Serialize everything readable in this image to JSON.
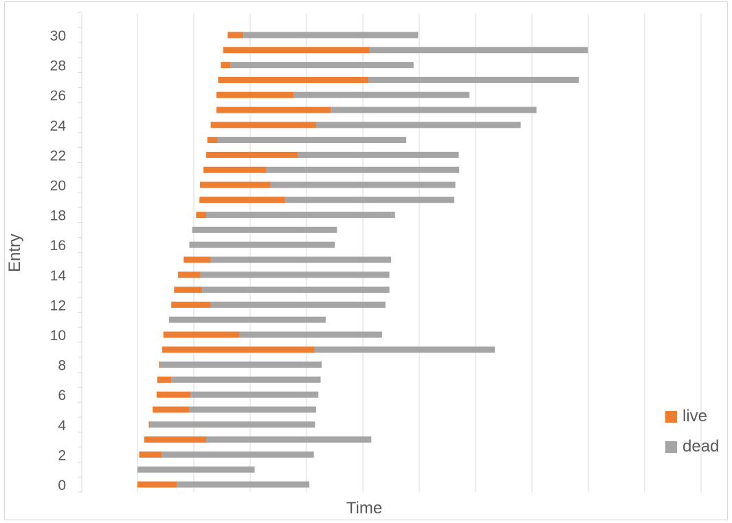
{
  "chart_data": {
    "type": "bar",
    "orientation": "horizontal",
    "stacked": true,
    "xlabel": "Time",
    "ylabel": "Entry",
    "y_ticks": [
      "0",
      "2",
      "4",
      "6",
      "8",
      "10",
      "12",
      "14",
      "16",
      "18",
      "20",
      "22",
      "24",
      "26",
      "28",
      "30"
    ],
    "xlim": [
      0,
      10
    ],
    "ylim": [
      -0.5,
      30.5
    ],
    "grid": {
      "vertical": true,
      "horizontal": false
    },
    "legend_position": "right",
    "series": [
      {
        "name": "live",
        "color": "#ED7D31",
        "values": [
          0.7,
          0,
          0.4,
          1.1,
          0.02,
          0.65,
          0.6,
          0.25,
          0.02,
          2.7,
          1.35,
          0,
          0.7,
          0.5,
          0.4,
          0.48,
          0,
          0,
          0.18,
          1.52,
          1.25,
          1.12,
          1.63,
          0.18,
          1.87,
          2.03,
          1.37,
          2.67,
          0.17,
          2.6,
          0.28
        ]
      },
      {
        "name": "dead",
        "color": "#A5A5A5",
        "values": [
          2.35,
          2.08,
          2.7,
          2.93,
          2.93,
          2.25,
          2.27,
          2.65,
          2.87,
          3.2,
          2.53,
          2.78,
          3.1,
          3.32,
          3.35,
          3.2,
          2.58,
          2.57,
          3.35,
          3.0,
          3.28,
          3.42,
          2.85,
          3.35,
          3.63,
          3.65,
          3.12,
          3.73,
          3.25,
          3.87,
          3.1
        ]
      }
    ],
    "offsets": [
      0,
      0,
      0.03,
      0.12,
      0.2,
      0.27,
      0.34,
      0.35,
      0.38,
      0.44,
      0.46,
      0.56,
      0.6,
      0.65,
      0.72,
      0.82,
      0.92,
      0.97,
      1.04,
      1.1,
      1.11,
      1.17,
      1.22,
      1.24,
      1.3,
      1.4,
      1.4,
      1.43,
      1.48,
      1.52,
      1.6
    ]
  }
}
